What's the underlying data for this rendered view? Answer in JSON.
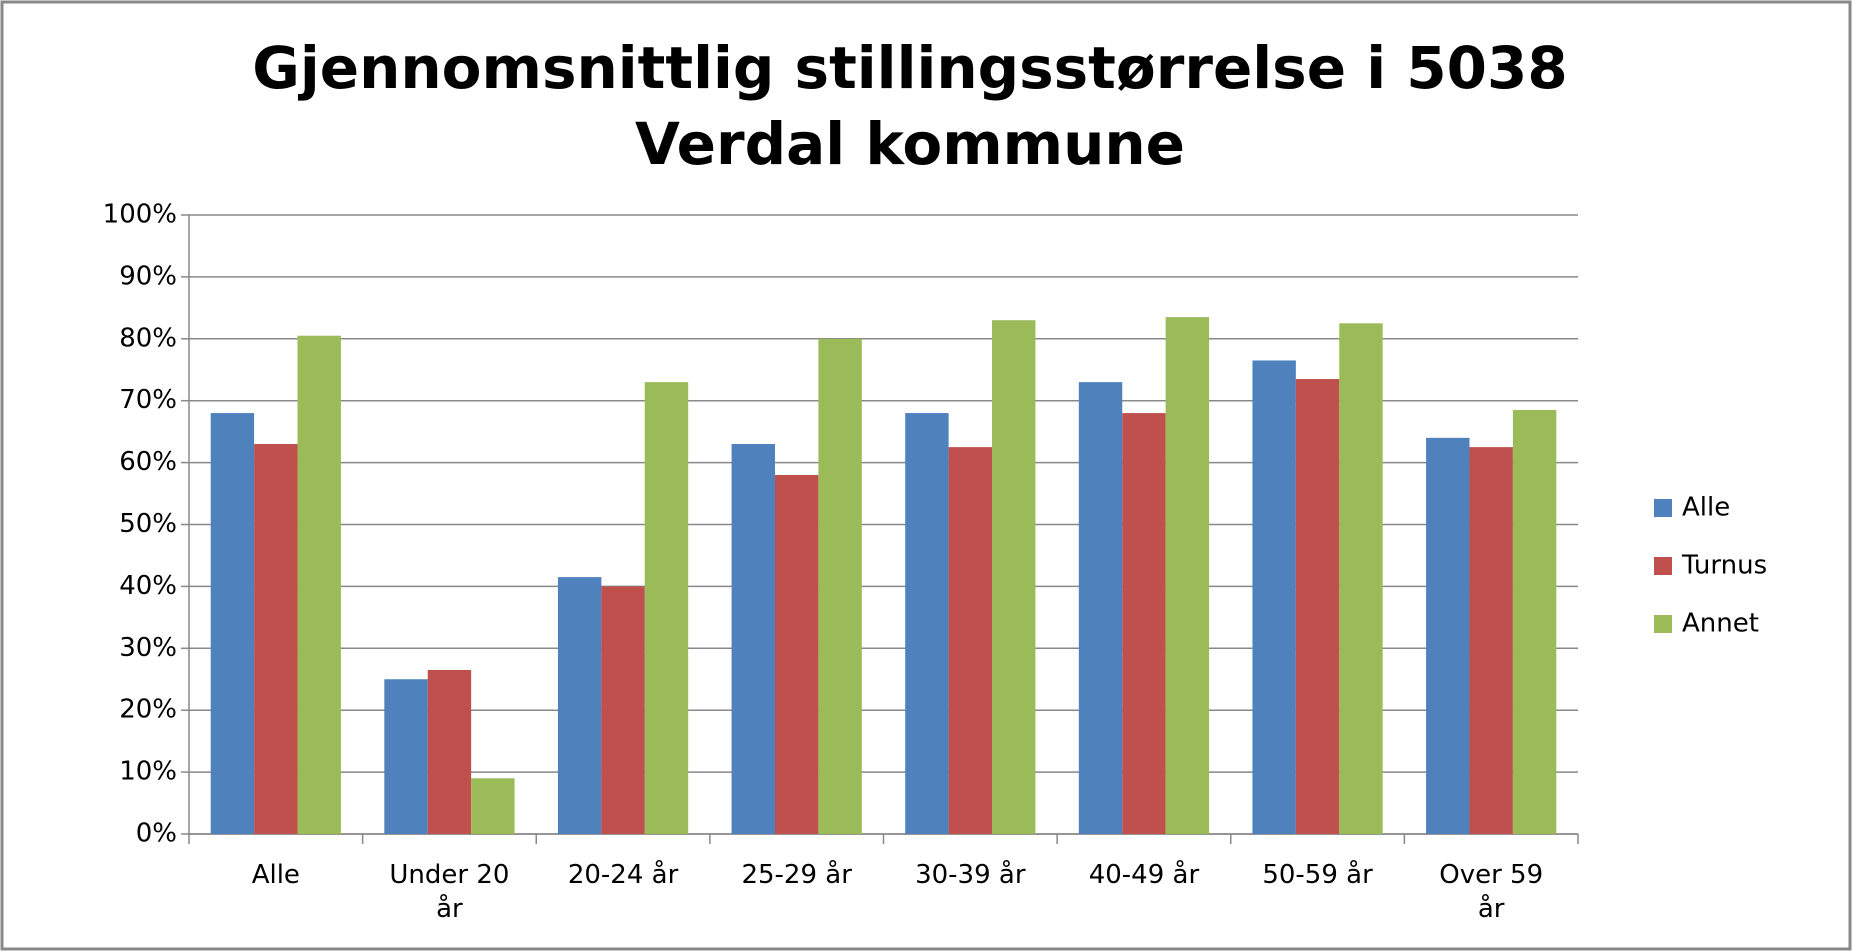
{
  "chart_data": {
    "type": "bar",
    "title": "Gjennomsnittlig stillingsstørrelse i 5038 Verdal kommune",
    "categories": [
      "Alle",
      "Under 20 år",
      "20-24 år",
      "25-29 år",
      "30-39 år",
      "40-49 år",
      "50-59 år",
      "Over 59 år"
    ],
    "series": [
      {
        "name": "Alle",
        "color": "#4f81bd",
        "values": [
          68,
          25,
          41.5,
          63,
          68,
          73,
          76.5,
          64
        ]
      },
      {
        "name": "Turnus",
        "color": "#c0504d",
        "values": [
          63,
          26.5,
          40,
          58,
          62.5,
          68,
          73.5,
          62.5
        ]
      },
      {
        "name": "Annet",
        "color": "#9bbb59",
        "values": [
          80.5,
          9,
          73,
          80,
          83,
          83.5,
          82.5,
          68.5
        ]
      }
    ],
    "ylim": [
      0,
      100
    ],
    "yticks": [
      {
        "value": 0,
        "label": "0%"
      },
      {
        "value": 10,
        "label": "10%"
      },
      {
        "value": 20,
        "label": "20%"
      },
      {
        "value": 30,
        "label": "30%"
      },
      {
        "value": 40,
        "label": "40%"
      },
      {
        "value": 50,
        "label": "50%"
      },
      {
        "value": 60,
        "label": "60%"
      },
      {
        "value": 70,
        "label": "70%"
      },
      {
        "value": 80,
        "label": "80%"
      },
      {
        "value": 90,
        "label": "90%"
      },
      {
        "value": 100,
        "label": "100%"
      }
    ],
    "grid": true,
    "legend": "right"
  }
}
